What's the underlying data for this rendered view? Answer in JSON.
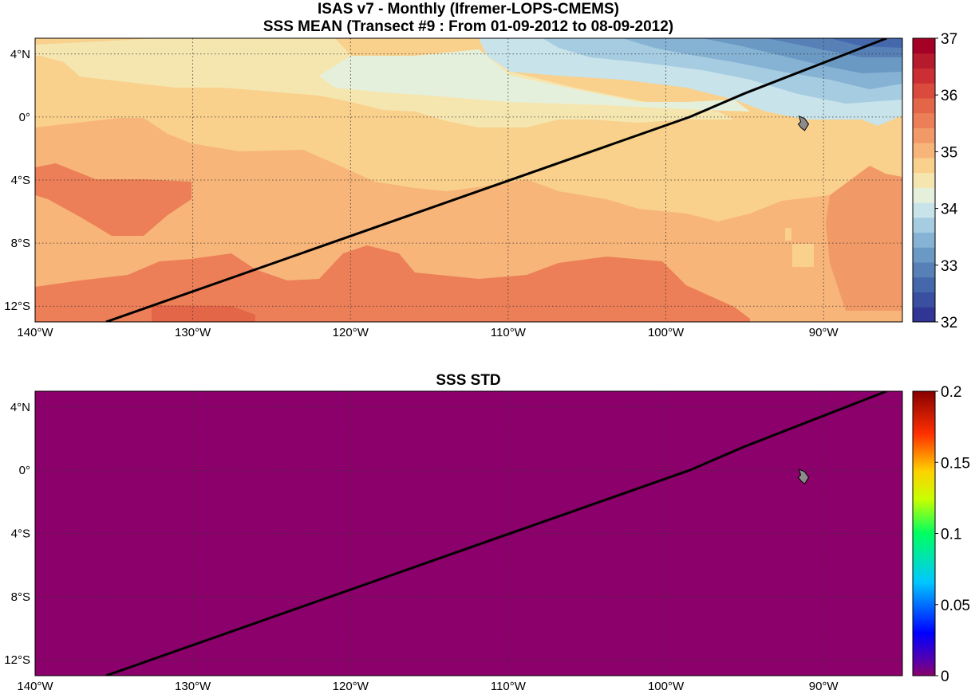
{
  "titles": {
    "line1": "ISAS v7 - Monthly (Ifremer-LOPS-CMEMS)",
    "line2": "SSS MEAN (Transect #9 : From 01-09-2012 to 08-09-2012)",
    "std_title": "SSS STD"
  },
  "map": {
    "lon_range": [
      -140,
      -85
    ],
    "lat_range": [
      -13,
      5
    ],
    "lon_ticks": [
      -140,
      -130,
      -120,
      -110,
      -100,
      -90
    ],
    "lon_tick_labels": [
      "140°W",
      "130°W",
      "120°W",
      "110°W",
      "100°W",
      "90°W"
    ],
    "lat_ticks": [
      4,
      0,
      -4,
      -8,
      -12
    ],
    "lat_tick_labels": [
      "4°N",
      "0°",
      "4°S",
      "8°S",
      "12°S"
    ],
    "transect": [
      [
        -135.5,
        -13
      ],
      [
        -98.5,
        0
      ],
      [
        -95,
        1.5
      ],
      [
        -86,
        5
      ]
    ],
    "island": "galapagos-icon"
  },
  "mean_colorbar": {
    "min": 32,
    "max": 37,
    "ticks": [
      32,
      33,
      34,
      35,
      36,
      37
    ],
    "tick_labels": [
      "32",
      "33",
      "34",
      "35",
      "36",
      "37"
    ],
    "colors": [
      "#313695",
      "#3a4fa0",
      "#4567ab",
      "#5780b7",
      "#6a99c4",
      "#86b2d3",
      "#a6cce1",
      "#c8e3ea",
      "#e5f0dc",
      "#f5e6b0",
      "#f9d08c",
      "#f7b57a",
      "#f19a68",
      "#ec7f57",
      "#e46648",
      "#da4a3d",
      "#cc2f33",
      "#b61b2d",
      "#a50026"
    ]
  },
  "std_colorbar": {
    "min": 0,
    "max": 0.2,
    "ticks": [
      0,
      0.05,
      0.1,
      0.15,
      0.2
    ],
    "tick_labels": [
      "0",
      "0.05",
      "0.1",
      "0.15",
      "0.2"
    ],
    "fill_color": "#8b006a"
  }
}
